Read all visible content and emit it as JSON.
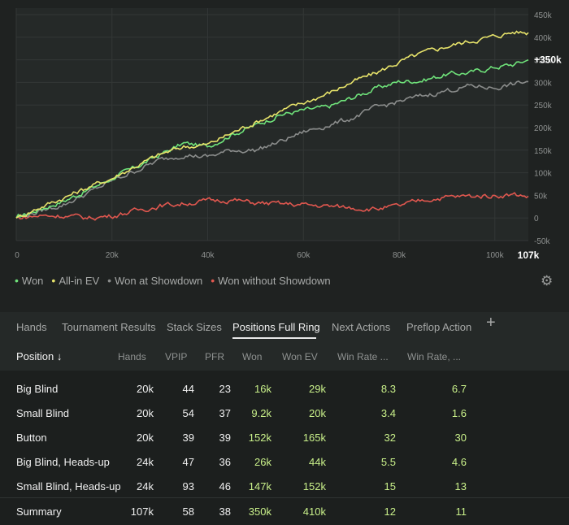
{
  "chart_data": {
    "type": "line",
    "x_ticks": [
      "0",
      "20k",
      "40k",
      "60k",
      "80k",
      "100k"
    ],
    "x_end_label": "107k",
    "y_ticks": [
      "450k",
      "400k",
      "350k",
      "300k",
      "250k",
      "200k",
      "150k",
      "100k",
      "50k",
      "0",
      "-50k"
    ],
    "end_value_label": "+350k",
    "xlim": [
      0,
      107000
    ],
    "ylim": [
      -50000,
      450000
    ],
    "series": [
      {
        "name": "Won",
        "color": "#6fe27a",
        "points": [
          [
            0,
            0
          ],
          [
            5000,
            20000
          ],
          [
            10000,
            38000
          ],
          [
            15000,
            62000
          ],
          [
            20000,
            88000
          ],
          [
            25000,
            112000
          ],
          [
            30000,
            140000
          ],
          [
            35000,
            165000
          ],
          [
            40000,
            158000
          ],
          [
            45000,
            185000
          ],
          [
            50000,
            205000
          ],
          [
            55000,
            228000
          ],
          [
            60000,
            238000
          ],
          [
            65000,
            245000
          ],
          [
            70000,
            265000
          ],
          [
            75000,
            286000
          ],
          [
            80000,
            302000
          ],
          [
            85000,
            305000
          ],
          [
            90000,
            318000
          ],
          [
            95000,
            322000
          ],
          [
            100000,
            334000
          ],
          [
            104000,
            340000
          ],
          [
            107000,
            350000
          ]
        ]
      },
      {
        "name": "All-in EV",
        "color": "#e6e26a",
        "points": [
          [
            0,
            0
          ],
          [
            5000,
            24000
          ],
          [
            10000,
            45000
          ],
          [
            15000,
            68000
          ],
          [
            20000,
            88000
          ],
          [
            25000,
            115000
          ],
          [
            30000,
            140000
          ],
          [
            35000,
            158000
          ],
          [
            40000,
            162000
          ],
          [
            45000,
            188000
          ],
          [
            50000,
            212000
          ],
          [
            55000,
            235000
          ],
          [
            60000,
            255000
          ],
          [
            65000,
            275000
          ],
          [
            70000,
            300000
          ],
          [
            75000,
            320000
          ],
          [
            80000,
            345000
          ],
          [
            85000,
            365000
          ],
          [
            90000,
            380000
          ],
          [
            95000,
            392000
          ],
          [
            100000,
            402000
          ],
          [
            104000,
            412000
          ],
          [
            107000,
            410000
          ]
        ]
      },
      {
        "name": "Won at Showdown",
        "color": "#8a8c8b",
        "points": [
          [
            0,
            0
          ],
          [
            5000,
            15000
          ],
          [
            10000,
            30000
          ],
          [
            15000,
            55000
          ],
          [
            20000,
            82000
          ],
          [
            25000,
            105000
          ],
          [
            30000,
            128000
          ],
          [
            35000,
            140000
          ],
          [
            40000,
            135000
          ],
          [
            45000,
            150000
          ],
          [
            50000,
            150000
          ],
          [
            55000,
            168000
          ],
          [
            60000,
            190000
          ],
          [
            65000,
            205000
          ],
          [
            70000,
            220000
          ],
          [
            75000,
            243000
          ],
          [
            80000,
            258000
          ],
          [
            85000,
            270000
          ],
          [
            90000,
            282000
          ],
          [
            95000,
            292000
          ],
          [
            100000,
            288000
          ],
          [
            104000,
            296000
          ],
          [
            107000,
            302000
          ]
        ]
      },
      {
        "name": "Won without Showdown",
        "color": "#e0574f",
        "points": [
          [
            0,
            0
          ],
          [
            5000,
            5000
          ],
          [
            10000,
            5000
          ],
          [
            15000,
            0
          ],
          [
            20000,
            5000
          ],
          [
            25000,
            16000
          ],
          [
            30000,
            27000
          ],
          [
            35000,
            32000
          ],
          [
            40000,
            38000
          ],
          [
            45000,
            40000
          ],
          [
            50000,
            33000
          ],
          [
            55000,
            31000
          ],
          [
            60000,
            29000
          ],
          [
            65000,
            26000
          ],
          [
            70000,
            23000
          ],
          [
            75000,
            20000
          ],
          [
            80000,
            26000
          ],
          [
            85000,
            40000
          ],
          [
            90000,
            46000
          ],
          [
            95000,
            48000
          ],
          [
            100000,
            50000
          ],
          [
            104000,
            52000
          ],
          [
            107000,
            48000
          ]
        ]
      }
    ]
  },
  "legend": [
    {
      "label": "Won",
      "color": "#6fe27a"
    },
    {
      "label": "All-in EV",
      "color": "#e6e26a"
    },
    {
      "label": "Won at Showdown",
      "color": "#8a8c8b"
    },
    {
      "label": "Won without Showdown",
      "color": "#e0574f"
    }
  ],
  "settings_icon": "gear-icon",
  "tabs": [
    "Hands",
    "Tournament Results",
    "Stack Sizes",
    "Positions Full Ring",
    "Next Actions",
    "Preflop Action"
  ],
  "active_tab": "Positions Full Ring",
  "add_tab_label": "+",
  "columns": [
    "Position ↓",
    "Hands",
    "VPIP",
    "PFR",
    "Won",
    "Won EV",
    "Win Rate ...",
    "Win Rate, ..."
  ],
  "rows": [
    {
      "position": "Big Blind",
      "hands": "20k",
      "vpip": "44",
      "pfr": "23",
      "won": "16k",
      "won_ev": "29k",
      "wr1": "8.3",
      "wr2": "6.7"
    },
    {
      "position": "Small Blind",
      "hands": "20k",
      "vpip": "54",
      "pfr": "37",
      "won": "9.2k",
      "won_ev": "20k",
      "wr1": "3.4",
      "wr2": "1.6"
    },
    {
      "position": "Button",
      "hands": "20k",
      "vpip": "39",
      "pfr": "39",
      "won": "152k",
      "won_ev": "165k",
      "wr1": "32",
      "wr2": "30"
    },
    {
      "position": "Big Blind, Heads-up",
      "hands": "24k",
      "vpip": "47",
      "pfr": "36",
      "won": "26k",
      "won_ev": "44k",
      "wr1": "5.5",
      "wr2": "4.6"
    },
    {
      "position": "Small Blind, Heads-up",
      "hands": "24k",
      "vpip": "93",
      "pfr": "46",
      "won": "147k",
      "won_ev": "152k",
      "wr1": "15",
      "wr2": "13"
    }
  ],
  "summary": {
    "position": "Summary",
    "hands": "107k",
    "vpip": "58",
    "pfr": "38",
    "won": "350k",
    "won_ev": "410k",
    "wr1": "12",
    "wr2": "11"
  }
}
